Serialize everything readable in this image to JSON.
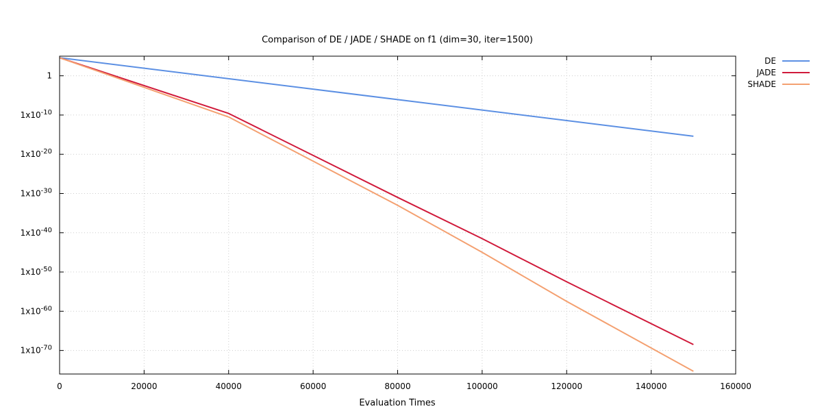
{
  "chart_data": {
    "type": "line",
    "title": "Comparison of DE / JADE / SHADE on f1 (dim=30, iter=1500)",
    "xlabel": "Evaluation Times",
    "ylabel": "",
    "xlim": [
      0,
      160000
    ],
    "ylim_log10": [
      -76,
      5
    ],
    "yscale": "log",
    "grid": true,
    "legend_position": "top-right",
    "x_ticks": [
      {
        "value": 0,
        "label": "0"
      },
      {
        "value": 20000,
        "label": "20000"
      },
      {
        "value": 40000,
        "label": "40000"
      },
      {
        "value": 60000,
        "label": "60000"
      },
      {
        "value": 80000,
        "label": "80000"
      },
      {
        "value": 100000,
        "label": "100000"
      },
      {
        "value": 120000,
        "label": "120000"
      },
      {
        "value": 140000,
        "label": "140000"
      },
      {
        "value": 160000,
        "label": "160000"
      }
    ],
    "y_ticks": [
      {
        "exp": 0,
        "base": "1",
        "sup": ""
      },
      {
        "exp": -10,
        "base": "1x10",
        "sup": "-10"
      },
      {
        "exp": -20,
        "base": "1x10",
        "sup": "-20"
      },
      {
        "exp": -30,
        "base": "1x10",
        "sup": "-30"
      },
      {
        "exp": -40,
        "base": "1x10",
        "sup": "-40"
      },
      {
        "exp": -50,
        "base": "1x10",
        "sup": "-50"
      },
      {
        "exp": -60,
        "base": "1x10",
        "sup": "-60"
      },
      {
        "exp": -70,
        "base": "1x10",
        "sup": "-70"
      }
    ],
    "series": [
      {
        "name": "DE",
        "color": "#5b8fe3",
        "points": [
          [
            0,
            4.6
          ],
          [
            150000,
            -15.4
          ]
        ]
      },
      {
        "name": "JADE",
        "color": "#d0193a",
        "points": [
          [
            0,
            4.6
          ],
          [
            40000,
            -9.6
          ],
          [
            80000,
            -31.0
          ],
          [
            100000,
            -41.5
          ],
          [
            120000,
            -52.5
          ],
          [
            150000,
            -68.5
          ]
        ]
      },
      {
        "name": "SHADE",
        "color": "#f4a070",
        "points": [
          [
            0,
            4.6
          ],
          [
            40000,
            -10.5
          ],
          [
            80000,
            -33.0
          ],
          [
            100000,
            -45.0
          ],
          [
            120000,
            -57.5
          ],
          [
            150000,
            -75.3
          ]
        ]
      }
    ]
  }
}
